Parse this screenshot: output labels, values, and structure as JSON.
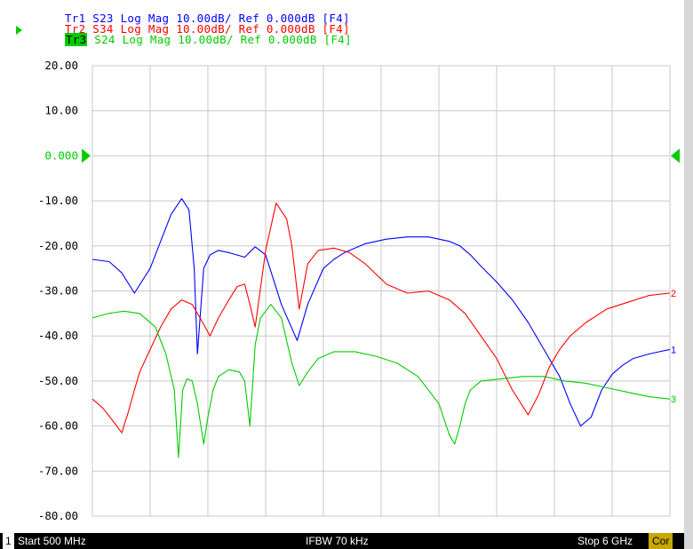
{
  "header": {
    "traces": [
      {
        "label": "Tr1",
        "text": "S23 Log Mag 10.00dB/ Ref 0.000dB [F4]",
        "color": "#0000ff",
        "active": false
      },
      {
        "label": "Tr2",
        "text": "S34 Log Mag 10.00dB/ Ref 0.000dB [F4]",
        "color": "#ff0000",
        "active": false
      },
      {
        "label": "Tr3",
        "text": "S24 Log Mag 10.00dB/ Ref 0.000dB [F4]",
        "color": "#00cc00",
        "active": true
      }
    ]
  },
  "status_bar": {
    "channel": "1",
    "start": "Start 500 MHz",
    "ifbw": "IFBW 70 kHz",
    "stop": "Stop 6 GHz",
    "correction": "Cor"
  },
  "colors": {
    "grid": "#c8c8c8",
    "axis_text": "#000000",
    "ref_marker": "#00cc00"
  },
  "chart_data": {
    "type": "line",
    "title": "",
    "xlabel": "",
    "ylabel": "",
    "xlim": [
      500,
      6000
    ],
    "ylim": [
      -80,
      20
    ],
    "y_ticks": [
      "20.00",
      "10.00",
      "0.000",
      "-10.00",
      "-20.00",
      "-30.00",
      "-40.00",
      "-50.00",
      "-60.00",
      "-70.00",
      "-80.00"
    ],
    "reference_level_label": "0.000",
    "grid": true,
    "x_divisions": 10,
    "series": [
      {
        "name": "1",
        "color": "#0000ff",
        "x": [
          500,
          660,
          780,
          900,
          1050,
          1250,
          1350,
          1420,
          1470,
          1500,
          1560,
          1620,
          1700,
          1800,
          1950,
          2050,
          2150,
          2300,
          2450,
          2550,
          2700,
          2800,
          2900,
          3100,
          3300,
          3500,
          3700,
          3900,
          4000,
          4100,
          4200,
          4350,
          4500,
          4650,
          4800,
          4950,
          5050,
          5150,
          5250,
          5350,
          5450,
          5550,
          5650,
          5800,
          5900,
          6000
        ],
        "y": [
          -23,
          -23.5,
          -26,
          -30.5,
          -25,
          -13,
          -9.5,
          -12,
          -25,
          -44,
          -25,
          -22,
          -21,
          -21.5,
          -22.5,
          -20.2,
          -22,
          -33,
          -41,
          -33,
          -25,
          -23,
          -21.5,
          -19.5,
          -18.5,
          -18,
          -18,
          -19,
          -20,
          -22,
          -24.5,
          -28,
          -32,
          -37,
          -43,
          -49,
          -55,
          -60,
          -58,
          -52,
          -48.5,
          -46.5,
          -45,
          -44,
          -43.5,
          -43
        ]
      },
      {
        "name": "2",
        "color": "#ff0000",
        "x": [
          500,
          600,
          700,
          780,
          840,
          900,
          950,
          1050,
          1150,
          1250,
          1350,
          1450,
          1550,
          1620,
          1700,
          1800,
          1880,
          1950,
          2000,
          2050,
          2150,
          2250,
          2350,
          2400,
          2470,
          2550,
          2650,
          2800,
          2950,
          3100,
          3300,
          3500,
          3700,
          3900,
          4050,
          4200,
          4350,
          4500,
          4650,
          4750,
          4850,
          4950,
          5050,
          5200,
          5400,
          5600,
          5800,
          6000
        ],
        "y": [
          -54,
          -56,
          -59,
          -61.5,
          -57,
          -52,
          -48,
          -43,
          -38,
          -34,
          -32,
          -33,
          -37,
          -40,
          -36,
          -32,
          -29,
          -28.5,
          -33,
          -38,
          -21,
          -10.5,
          -14,
          -20,
          -34,
          -24,
          -21,
          -20.5,
          -21.5,
          -24,
          -28.5,
          -30.5,
          -30,
          -32,
          -35,
          -40,
          -45,
          -52,
          -57.5,
          -53,
          -47,
          -43,
          -40,
          -37,
          -34,
          -32.5,
          -31,
          -30.5
        ]
      },
      {
        "name": "3",
        "color": "#00cc00",
        "x": [
          500,
          650,
          800,
          950,
          1100,
          1200,
          1280,
          1320,
          1360,
          1400,
          1450,
          1500,
          1560,
          1600,
          1650,
          1700,
          1800,
          1900,
          1950,
          2000,
          2050,
          2100,
          2200,
          2300,
          2400,
          2470,
          2550,
          2650,
          2800,
          3000,
          3200,
          3400,
          3600,
          3800,
          3900,
          3950,
          4000,
          4050,
          4100,
          4200,
          4400,
          4600,
          4800,
          5000,
          5200,
          5400,
          5600,
          5800,
          6000
        ],
        "y": [
          -36,
          -35,
          -34.5,
          -35,
          -38,
          -44,
          -52,
          -67,
          -52,
          -49.5,
          -50,
          -55,
          -64,
          -58,
          -52,
          -49,
          -47.5,
          -48,
          -50,
          -60,
          -42,
          -36,
          -33,
          -36,
          -46,
          -51,
          -48,
          -45,
          -43.5,
          -43.5,
          -44.5,
          -46,
          -49,
          -55,
          -62,
          -64,
          -60,
          -55,
          -52,
          -50,
          -49.5,
          -49,
          -49,
          -50,
          -50.5,
          -51.5,
          -52.5,
          -53.5,
          -54
        ]
      }
    ]
  }
}
